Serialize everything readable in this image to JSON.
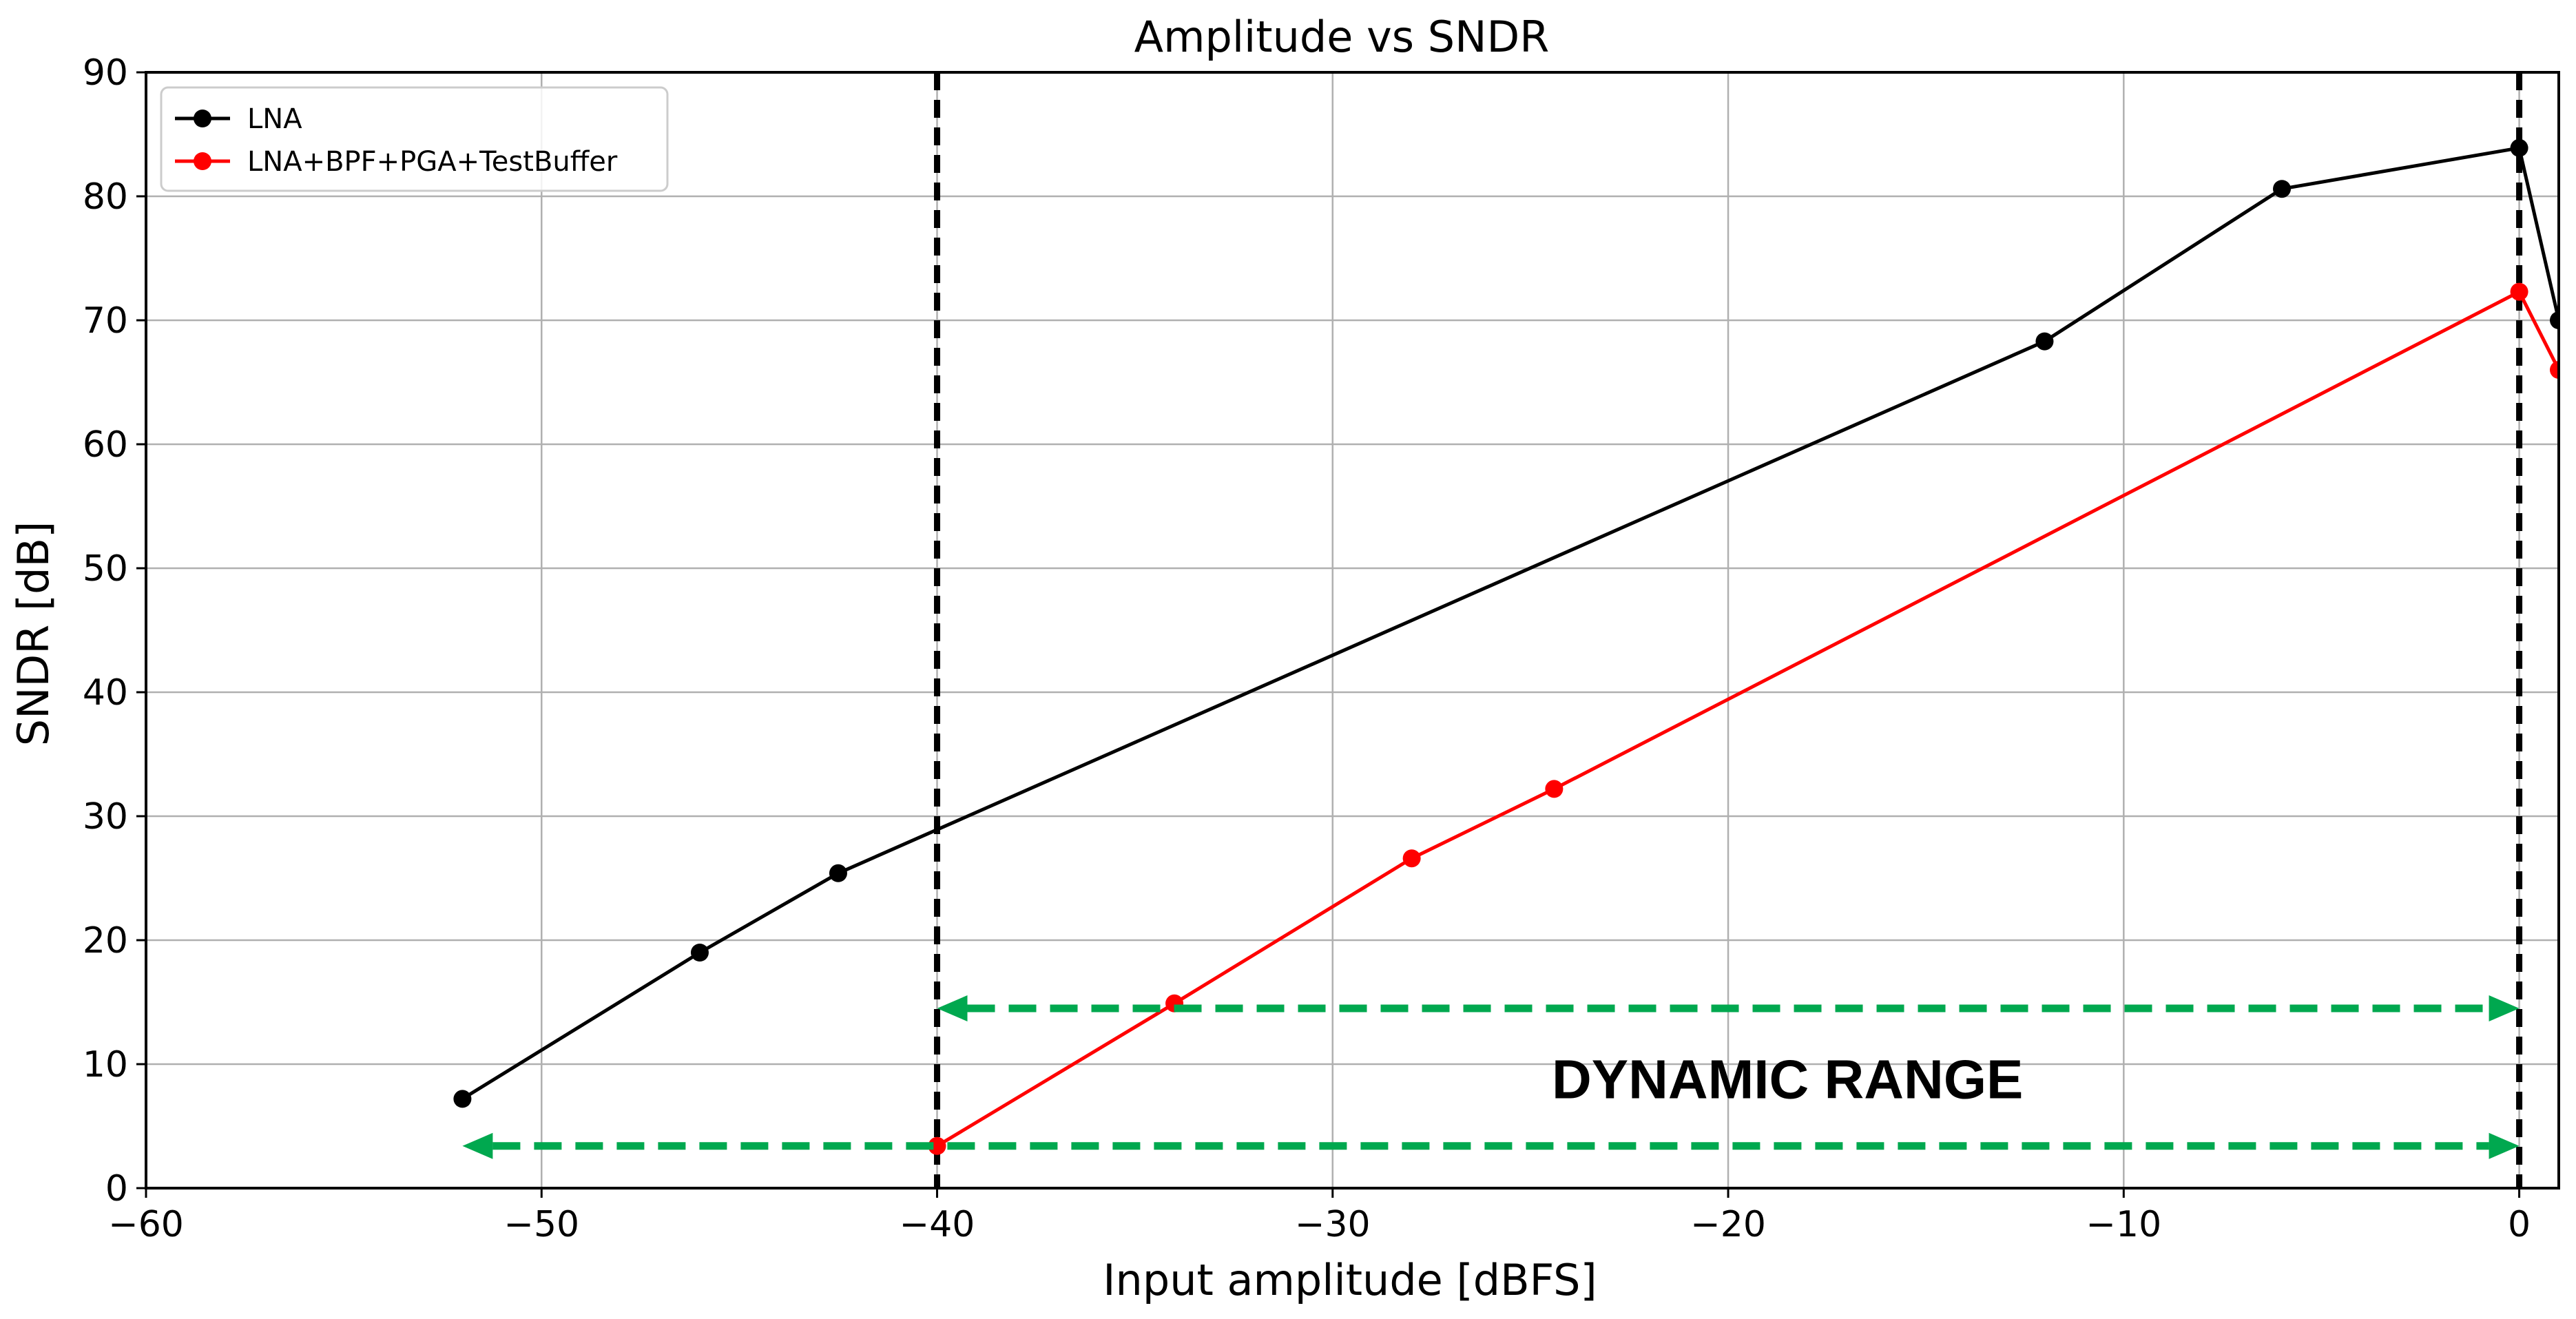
{
  "chart_data": {
    "type": "line",
    "title": "Amplitude vs SNDR",
    "xlabel": "Input amplitude [dBFS]",
    "ylabel": "SNDR [dB]",
    "xlim": [
      -60,
      1
    ],
    "ylim": [
      0,
      90
    ],
    "xticks": [
      -60,
      -50,
      -40,
      -30,
      -20,
      -10,
      0
    ],
    "xtick_labels": [
      "−60",
      "−50",
      "−40",
      "−30",
      "−20",
      "−10",
      "0"
    ],
    "yticks": [
      0,
      10,
      20,
      30,
      40,
      50,
      60,
      70,
      80,
      90
    ],
    "ytick_labels": [
      "0",
      "10",
      "20",
      "30",
      "40",
      "50",
      "60",
      "70",
      "80",
      "90"
    ],
    "grid": true,
    "legend_position": "top-left",
    "series": [
      {
        "name": "LNA",
        "color": "#000000",
        "x": [
          -52,
          -46,
          -42.5,
          -12,
          -6,
          0,
          1
        ],
        "y": [
          7.2,
          19.0,
          25.4,
          68.3,
          80.6,
          83.9,
          70.0
        ]
      },
      {
        "name": "LNA+BPF+PGA+TestBuffer",
        "color": "#ff0000",
        "x": [
          -40,
          -34,
          -28,
          -24.4,
          0,
          1
        ],
        "y": [
          3.4,
          14.9,
          26.6,
          32.2,
          72.3,
          66.0
        ]
      }
    ],
    "reference_lines": {
      "vertical_x": [
        -40,
        0
      ],
      "color": "#000000",
      "style": "dashed"
    },
    "annotations": [
      {
        "type": "double-arrow",
        "x1": -40,
        "x2": 0,
        "y": 14.5,
        "color": "#00a84f"
      },
      {
        "type": "double-arrow",
        "x1": -52,
        "x2": 0,
        "y": 3.4,
        "color": "#00a84f"
      },
      {
        "type": "text",
        "text": "DYNAMIC RANGE",
        "x": -18.5,
        "y": 8.8
      }
    ]
  }
}
